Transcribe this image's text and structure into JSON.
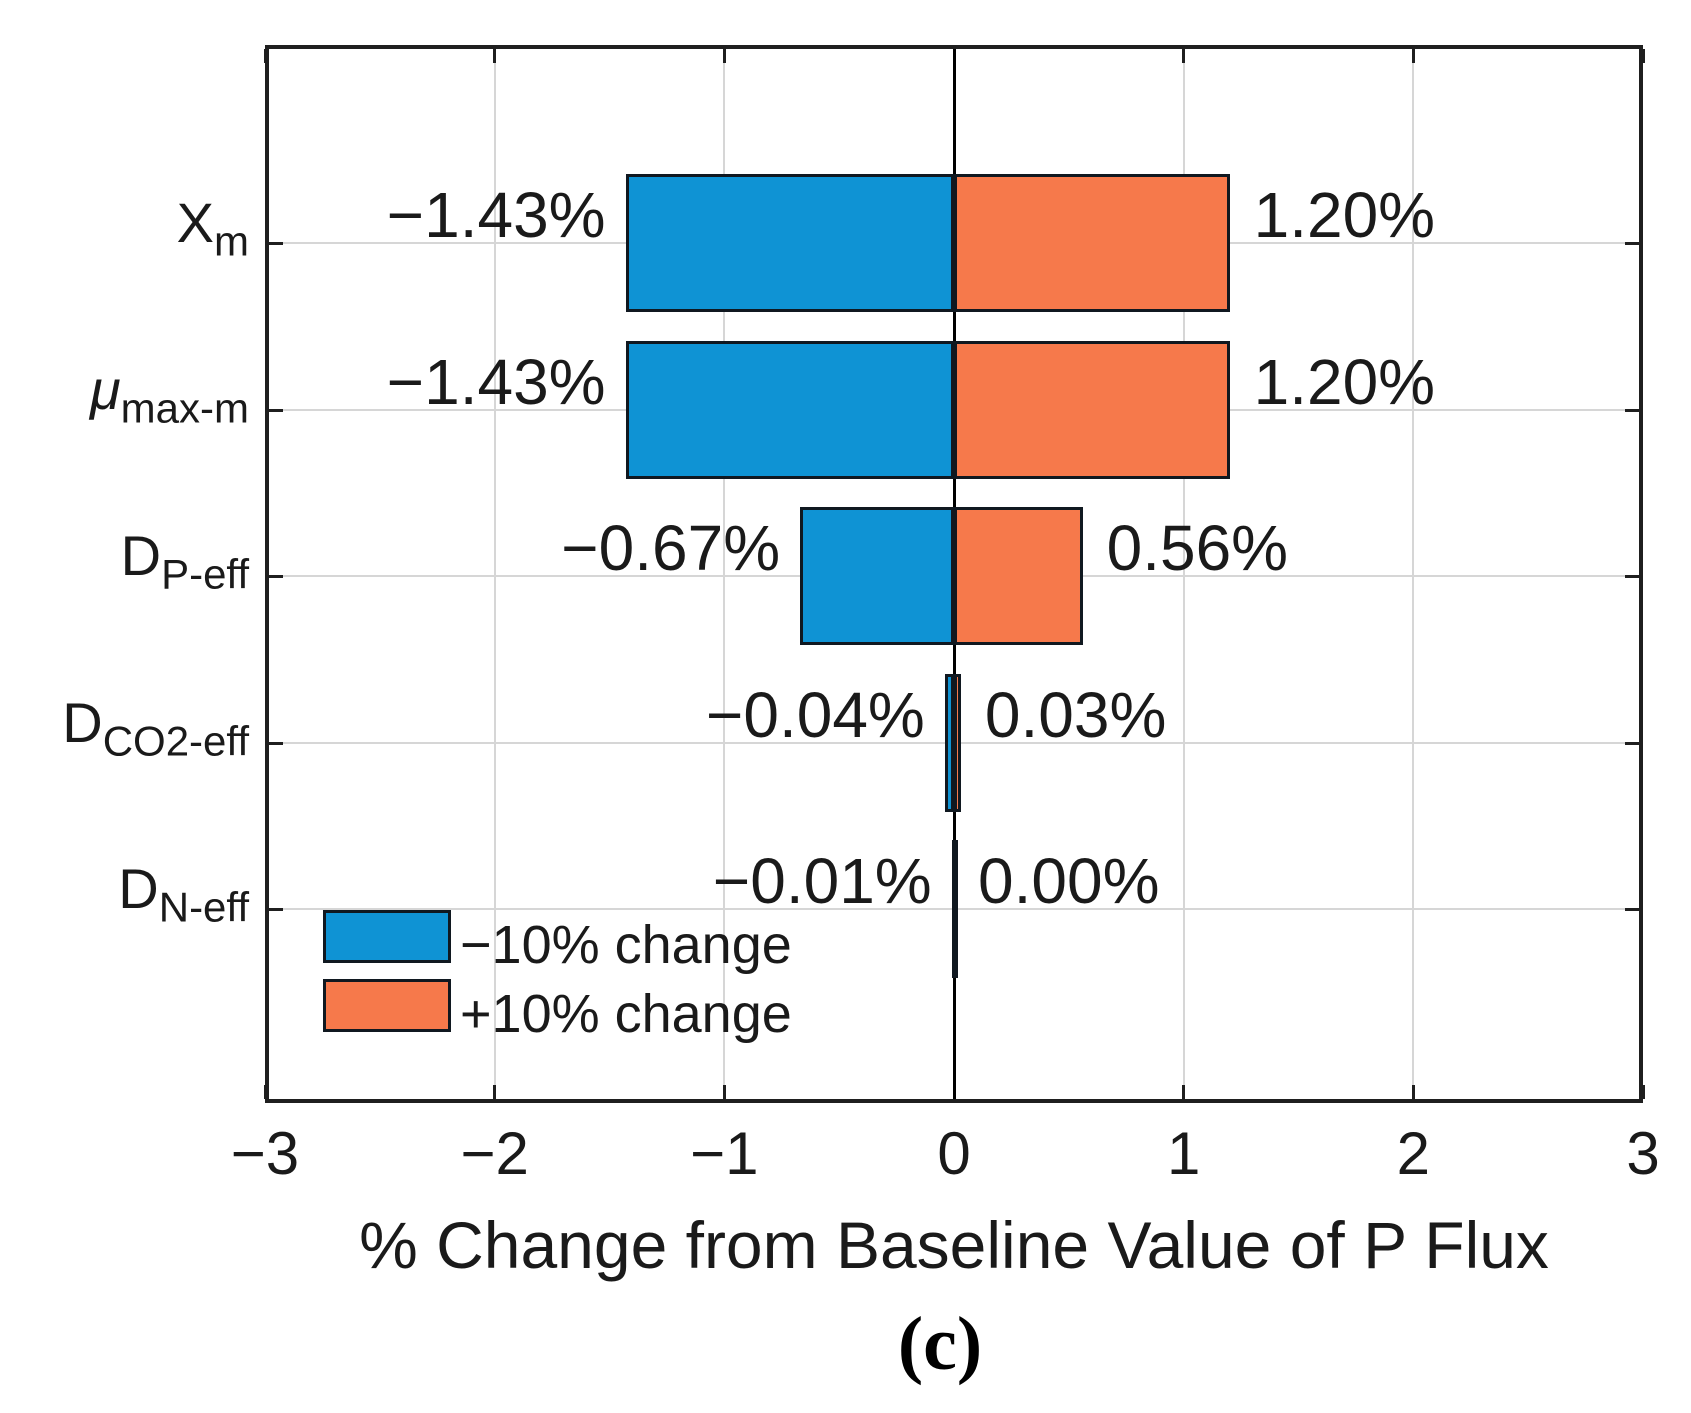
{
  "figure": {
    "caption": "(c)",
    "x_axis": {
      "label": "% Change from Baseline Value of P Flux",
      "tick_labels": [
        "−3",
        "−2",
        "−1",
        "0",
        "1",
        "2",
        "3"
      ],
      "tick_values": [
        -3,
        -2,
        -1,
        0,
        1,
        2,
        3
      ]
    },
    "legend": [
      {
        "label": "−10% change",
        "color": "#0f93d4"
      },
      {
        "label": "+10% change",
        "color": "#f6794b"
      }
    ]
  },
  "chart_data": {
    "type": "bar",
    "orientation": "horizontal",
    "title": "",
    "xlabel": "% Change from Baseline Value of P Flux",
    "xlim": [
      -3,
      3
    ],
    "grid": true,
    "grid_x_values": [
      -2,
      -1,
      1,
      2
    ],
    "legend_position": "bottom-left-inside",
    "categories": [
      {
        "key": "Xm",
        "main": "X",
        "sub": "m",
        "italic": false
      },
      {
        "key": "mu-max-m",
        "main": "μ",
        "sub": "max-m",
        "italic": true
      },
      {
        "key": "DP-eff",
        "main": "D",
        "sub": "P-eff",
        "italic": false
      },
      {
        "key": "DCO2-eff",
        "main": "D",
        "sub": "CO2-eff",
        "italic": false
      },
      {
        "key": "DN-eff",
        "main": "D",
        "sub": "N-eff",
        "italic": false
      }
    ],
    "series": [
      {
        "key": "minus-10",
        "name": "−10% change",
        "color": "#0f93d4",
        "values": [
          -1.43,
          -1.43,
          -0.67,
          -0.04,
          -0.01
        ],
        "labels": [
          "−1.43%",
          "−1.43%",
          "−0.67%",
          "−0.04%",
          "−0.01%"
        ]
      },
      {
        "key": "plus-10",
        "name": "+10% change",
        "color": "#f6794b",
        "values": [
          1.2,
          1.2,
          0.56,
          0.03,
          0.0
        ],
        "labels": [
          "1.20%",
          "1.20%",
          "0.56%",
          "0.03%",
          "0.00%"
        ]
      }
    ],
    "colors": {
      "bar_border": "#101820",
      "grid": "#d6d6d6",
      "axis": "#1f1f1f",
      "zero_line": "#000000",
      "text": "#1a1a1a"
    }
  }
}
